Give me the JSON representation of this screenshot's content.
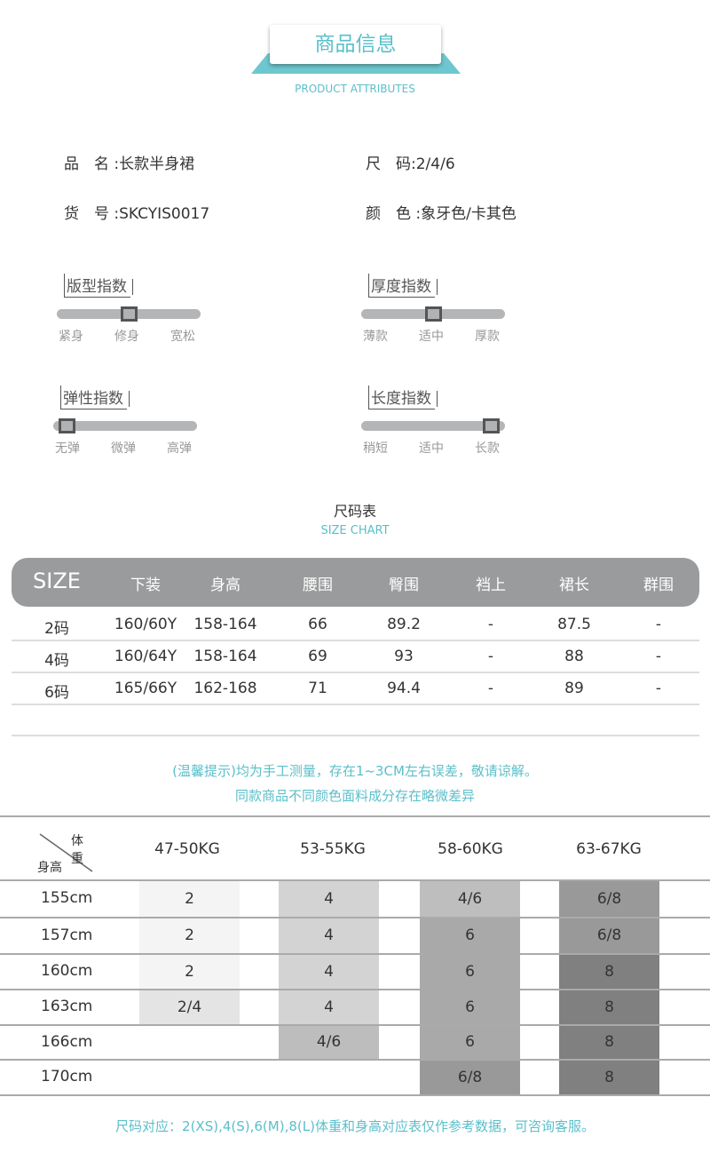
{
  "header": {
    "title": "商品信息",
    "subtitle": "PRODUCT ATTRIBUTES"
  },
  "attributes": [
    {
      "label": "品　名",
      "value": ":长款半身裙"
    },
    {
      "label": "尺　码",
      "value": ":2/4/6"
    },
    {
      "label": "货　号",
      "value": ":SKCYIS0017"
    },
    {
      "label": "颜　色",
      "value": ":象牙色/卡其色"
    }
  ],
  "indices": [
    {
      "title": "版型指数",
      "options": [
        "紧身",
        "修身",
        "宽松"
      ],
      "selected": "修身",
      "level": 0.5
    },
    {
      "title": "厚度指数",
      "options": [
        "薄款",
        "适中",
        "厚款"
      ],
      "selected": "适中",
      "level": 0.5
    },
    {
      "title": "弹性指数",
      "options": [
        "无弹",
        "微弹",
        "高弹"
      ],
      "selected": "无弹",
      "level": 0.0
    },
    {
      "title": "长度指数",
      "options": [
        "稍短",
        "适中",
        "长款"
      ],
      "selected": "长款",
      "level": 1.0
    }
  ],
  "size_chart": {
    "title": "尺码表",
    "subtitle": "SIZE CHART",
    "headers": [
      "SIZE",
      "下装",
      "身高",
      "腰围",
      "臀围",
      "裆上",
      "裙长",
      "群围"
    ],
    "rows": [
      [
        "2码",
        "160/60Y",
        "158-164",
        "66",
        "89.2",
        "-",
        "87.5",
        "-"
      ],
      [
        "4码",
        "160/64Y",
        "158-164",
        "69",
        "93",
        "-",
        "88",
        "-"
      ],
      [
        "6码",
        "165/66Y",
        "162-168",
        "71",
        "94.4",
        "-",
        "89",
        "-"
      ]
    ]
  },
  "notes": [
    "(温馨提示)均为手工测量，存在1~3CM左右误差，敬请谅解。",
    "同款商品不同颜色面料成分存在略微差异"
  ],
  "recommend": {
    "corner_top": "体重",
    "corner_bottom": "身高",
    "weights": [
      "47-50KG",
      "53-55KG",
      "58-60KG",
      "63-67KG"
    ],
    "rows": [
      {
        "height": "155cm",
        "sizes": [
          "2",
          "4",
          "4/6",
          "6/8"
        ]
      },
      {
        "height": "157cm",
        "sizes": [
          "2",
          "4",
          "6",
          "6/8"
        ]
      },
      {
        "height": "160cm",
        "sizes": [
          "2",
          "4",
          "6",
          "8"
        ]
      },
      {
        "height": "163cm",
        "sizes": [
          "2/4",
          "4",
          "6",
          "8"
        ]
      },
      {
        "height": "166cm",
        "sizes": [
          "",
          "4/6",
          "6",
          "8"
        ]
      },
      {
        "height": "170cm",
        "sizes": [
          "",
          "",
          "6/8",
          "8"
        ]
      }
    ],
    "cell_colors": [
      [
        "#f4f4f4",
        "#d3d3d3",
        "#bebebe",
        "#999999"
      ],
      [
        "#f4f4f4",
        "#d3d3d3",
        "#a9a9a9",
        "#999999"
      ],
      [
        "#f4f4f4",
        "#d3d3d3",
        "#a9a9a9",
        "#808080"
      ],
      [
        "#e4e4e4",
        "#d3d3d3",
        "#a9a9a9",
        "#808080"
      ],
      [
        "",
        "#bdbdbd",
        "#a9a9a9",
        "#808080"
      ],
      [
        "",
        "",
        "#999999",
        "#808080"
      ]
    ]
  },
  "footer": "尺码对应：2(XS),4(S),6(M),8(L)体重和身高对应表仅作参考数据，可咨询客服。",
  "colors": {
    "accent": "#5bbfca",
    "header_bar": "#9a9b9c"
  }
}
